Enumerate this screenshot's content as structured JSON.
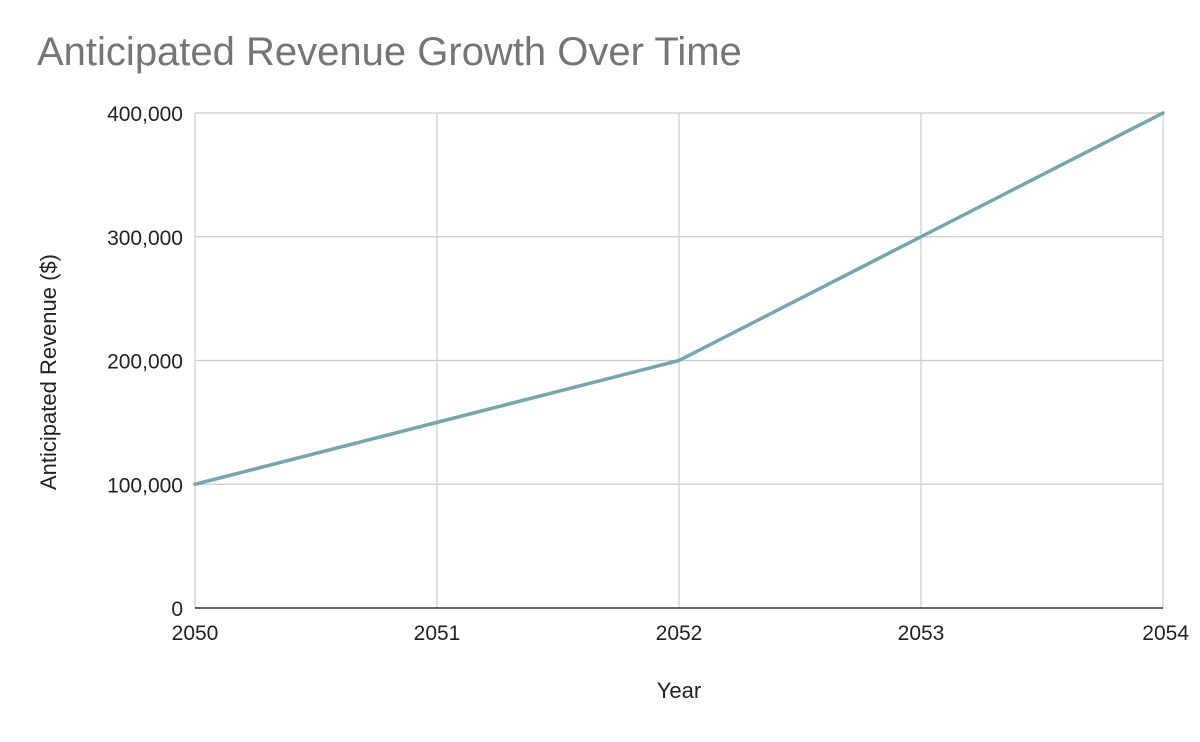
{
  "chart_data": {
    "type": "line",
    "title": "Anticipated Revenue Growth Over Time",
    "xlabel": "Year",
    "ylabel": "Anticipated Revenue ($)",
    "x": [
      "2050",
      "2051",
      "2052",
      "2053",
      "2054"
    ],
    "series": [
      {
        "values": [
          100000,
          150000,
          200000,
          300000,
          400000
        ],
        "color": "#76a5af"
      }
    ],
    "ylim": [
      0,
      400000
    ],
    "yticks": [
      "0",
      "100,000",
      "200,000",
      "300,000",
      "400,000"
    ],
    "yticks_values": [
      0,
      100000,
      200000,
      300000,
      400000
    ],
    "grid": true,
    "legend": "none"
  }
}
